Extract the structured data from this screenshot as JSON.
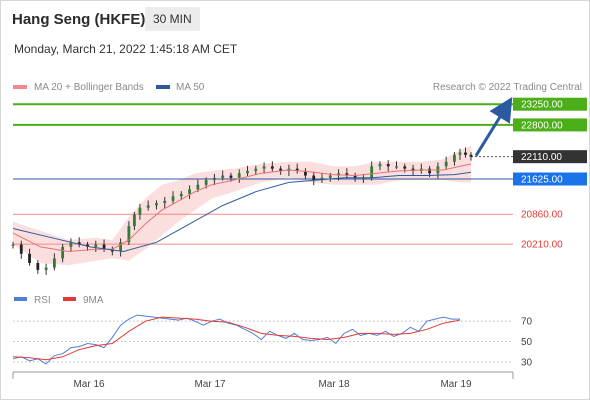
{
  "header": {
    "title": "Hang Seng (HKFE)",
    "timeframe": "30 MIN",
    "datetime": "Monday, March 21, 2022 1:45:18 AM CET"
  },
  "chart_data": [
    {
      "type": "candlestick",
      "legend": [
        {
          "name": "MA 20 + Bollinger Bands",
          "color": "#f08a8a"
        },
        {
          "name": "MA 50",
          "color": "#2c5aa0"
        }
      ],
      "attribution": "Research © 2022 Trading Central",
      "x_ticks": [
        "Mar 16",
        "Mar 17",
        "Mar 18",
        "Mar 19"
      ],
      "ylim": [
        19300,
        23450
      ],
      "levels": [
        {
          "value": 23250,
          "label": "23250.00",
          "type": "resistance",
          "color": "#4caf1a"
        },
        {
          "value": 22800,
          "label": "22800.00",
          "type": "resistance",
          "color": "#4caf1a"
        },
        {
          "value": 22110,
          "label": "22110.00",
          "type": "last-price",
          "color": "#333333"
        },
        {
          "value": 21625,
          "label": "21625.00",
          "type": "pivot",
          "color": "#1a73e8"
        },
        {
          "value": 20860,
          "label": "20860.00",
          "type": "support",
          "color": "#e53935"
        },
        {
          "value": 20210,
          "label": "20210.00",
          "type": "support",
          "color": "#e53935"
        }
      ],
      "price_path": [
        [
          0,
          20200
        ],
        [
          3,
          20000
        ],
        [
          6,
          19800
        ],
        [
          9,
          19650
        ],
        [
          12,
          19700
        ],
        [
          15,
          19900
        ],
        [
          18,
          20150
        ],
        [
          21,
          20250
        ],
        [
          24,
          20200
        ],
        [
          27,
          20150
        ],
        [
          30,
          20200
        ],
        [
          33,
          20100
        ],
        [
          36,
          20050
        ],
        [
          39,
          20250
        ],
        [
          42,
          20600
        ],
        [
          44,
          20850
        ],
        [
          46,
          21000
        ],
        [
          49,
          21050
        ],
        [
          52,
          21100
        ],
        [
          55,
          21150
        ],
        [
          58,
          21250
        ],
        [
          61,
          21300
        ],
        [
          64,
          21400
        ],
        [
          67,
          21500
        ],
        [
          70,
          21600
        ],
        [
          73,
          21650
        ],
        [
          76,
          21700
        ],
        [
          79,
          21650
        ],
        [
          82,
          21750
        ],
        [
          85,
          21800
        ],
        [
          88,
          21850
        ],
        [
          91,
          21900
        ],
        [
          94,
          21850
        ],
        [
          97,
          21800
        ],
        [
          100,
          21850
        ],
        [
          103,
          21800
        ],
        [
          106,
          21700
        ],
        [
          109,
          21600
        ],
        [
          112,
          21650
        ],
        [
          115,
          21700
        ],
        [
          118,
          21750
        ],
        [
          121,
          21700
        ],
        [
          124,
          21650
        ],
        [
          127,
          21650
        ],
        [
          130,
          21900
        ],
        [
          133,
          21950
        ],
        [
          136,
          21900
        ],
        [
          139,
          21900
        ],
        [
          142,
          21850
        ],
        [
          145,
          21800
        ],
        [
          148,
          21850
        ],
        [
          151,
          21750
        ],
        [
          154,
          21900
        ],
        [
          157,
          22000
        ],
        [
          160,
          22150
        ],
        [
          162,
          22200
        ],
        [
          164,
          22150
        ],
        [
          166,
          22110
        ]
      ],
      "ma20_path": [
        [
          0,
          20450
        ],
        [
          10,
          20150
        ],
        [
          20,
          20050
        ],
        [
          30,
          20100
        ],
        [
          36,
          20100
        ],
        [
          42,
          20300
        ],
        [
          48,
          20650
        ],
        [
          54,
          20950
        ],
        [
          60,
          21150
        ],
        [
          66,
          21350
        ],
        [
          72,
          21500
        ],
        [
          80,
          21600
        ],
        [
          90,
          21750
        ],
        [
          100,
          21820
        ],
        [
          108,
          21780
        ],
        [
          116,
          21720
        ],
        [
          124,
          21700
        ],
        [
          132,
          21750
        ],
        [
          140,
          21800
        ],
        [
          148,
          21820
        ],
        [
          156,
          21820
        ],
        [
          162,
          21900
        ],
        [
          166,
          21950
        ]
      ],
      "ma50_path": [
        [
          0,
          20550
        ],
        [
          14,
          20350
        ],
        [
          28,
          20150
        ],
        [
          40,
          20050
        ],
        [
          52,
          20250
        ],
        [
          64,
          20650
        ],
        [
          76,
          21050
        ],
        [
          88,
          21350
        ],
        [
          100,
          21550
        ],
        [
          110,
          21600
        ],
        [
          120,
          21650
        ],
        [
          130,
          21650
        ],
        [
          140,
          21700
        ],
        [
          150,
          21700
        ],
        [
          160,
          21720
        ],
        [
          166,
          21770
        ]
      ],
      "band_upper": [
        [
          0,
          20700
        ],
        [
          10,
          20500
        ],
        [
          20,
          20300
        ],
        [
          30,
          20350
        ],
        [
          36,
          20300
        ],
        [
          42,
          20800
        ],
        [
          48,
          21200
        ],
        [
          54,
          21500
        ],
        [
          60,
          21600
        ],
        [
          66,
          21750
        ],
        [
          72,
          21800
        ],
        [
          80,
          21850
        ],
        [
          90,
          21950
        ],
        [
          100,
          22000
        ],
        [
          108,
          22000
        ],
        [
          116,
          21900
        ],
        [
          124,
          21900
        ],
        [
          132,
          22000
        ],
        [
          140,
          22000
        ],
        [
          148,
          22000
        ],
        [
          156,
          22050
        ],
        [
          162,
          22250
        ],
        [
          166,
          22350
        ]
      ],
      "band_lower": [
        [
          0,
          20200
        ],
        [
          10,
          19800
        ],
        [
          20,
          19750
        ],
        [
          30,
          19850
        ],
        [
          36,
          19900
        ],
        [
          42,
          19850
        ],
        [
          48,
          20100
        ],
        [
          54,
          20400
        ],
        [
          60,
          20700
        ],
        [
          66,
          20950
        ],
        [
          72,
          21200
        ],
        [
          80,
          21350
        ],
        [
          90,
          21550
        ],
        [
          100,
          21650
        ],
        [
          108,
          21550
        ],
        [
          116,
          21500
        ],
        [
          124,
          21500
        ],
        [
          132,
          21500
        ],
        [
          140,
          21600
        ],
        [
          148,
          21600
        ],
        [
          156,
          21600
        ],
        [
          162,
          21550
        ],
        [
          166,
          21550
        ]
      ]
    },
    {
      "type": "line",
      "legend": [
        {
          "name": "RSI",
          "color": "#4f7fd9"
        },
        {
          "name": "9MA",
          "color": "#e53935"
        }
      ],
      "ylim": [
        20,
        80
      ],
      "y_ticks": [
        70,
        50,
        30
      ],
      "series": [
        {
          "name": "RSI",
          "color": "#4f7fd9",
          "values": [
            [
              0,
              33
            ],
            [
              3,
              35
            ],
            [
              6,
              31
            ],
            [
              9,
              33
            ],
            [
              12,
              28
            ],
            [
              15,
              36
            ],
            [
              18,
              38
            ],
            [
              21,
              44
            ],
            [
              24,
              45
            ],
            [
              27,
              48
            ],
            [
              30,
              47
            ],
            [
              33,
              44
            ],
            [
              36,
              54
            ],
            [
              39,
              66
            ],
            [
              42,
              72
            ],
            [
              45,
              76
            ],
            [
              48,
              75
            ],
            [
              51,
              74
            ],
            [
              54,
              73
            ],
            [
              57,
              72
            ],
            [
              60,
              71
            ],
            [
              63,
              73
            ],
            [
              66,
              70
            ],
            [
              69,
              66
            ],
            [
              72,
              70
            ],
            [
              75,
              72
            ],
            [
              78,
              68
            ],
            [
              81,
              66
            ],
            [
              84,
              62
            ],
            [
              87,
              58
            ],
            [
              90,
              52
            ],
            [
              93,
              60
            ],
            [
              96,
              56
            ],
            [
              99,
              53
            ],
            [
              102,
              58
            ],
            [
              105,
              52
            ],
            [
              108,
              51
            ],
            [
              111,
              52
            ],
            [
              114,
              54
            ],
            [
              117,
              48
            ],
            [
              120,
              58
            ],
            [
              123,
              62
            ],
            [
              126,
              56
            ],
            [
              129,
              58
            ],
            [
              132,
              56
            ],
            [
              135,
              60
            ],
            [
              138,
              55
            ],
            [
              141,
              58
            ],
            [
              144,
              64
            ],
            [
              147,
              60
            ],
            [
              150,
              70
            ],
            [
              153,
              72
            ],
            [
              156,
              74
            ],
            [
              159,
              72
            ],
            [
              162,
              72
            ]
          ]
        },
        {
          "name": "9MA",
          "color": "#e53935",
          "values": [
            [
              0,
              35
            ],
            [
              6,
              34
            ],
            [
              12,
              32
            ],
            [
              18,
              35
            ],
            [
              24,
              42
            ],
            [
              30,
              46
            ],
            [
              36,
              48
            ],
            [
              42,
              60
            ],
            [
              48,
              70
            ],
            [
              54,
              74
            ],
            [
              60,
              73
            ],
            [
              66,
              72
            ],
            [
              72,
              70
            ],
            [
              78,
              69
            ],
            [
              84,
              64
            ],
            [
              90,
              58
            ],
            [
              96,
              56
            ],
            [
              102,
              55
            ],
            [
              108,
              53
            ],
            [
              114,
              52
            ],
            [
              120,
              54
            ],
            [
              126,
              58
            ],
            [
              132,
              58
            ],
            [
              138,
              57
            ],
            [
              144,
              58
            ],
            [
              150,
              62
            ],
            [
              156,
              68
            ],
            [
              162,
              71
            ]
          ]
        }
      ]
    }
  ]
}
